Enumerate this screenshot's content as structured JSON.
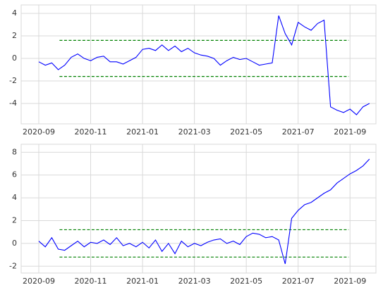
{
  "chart_data": [
    {
      "type": "line",
      "color": "#0000ff",
      "grid": true,
      "x": [
        0,
        0.25,
        0.5,
        0.75,
        1,
        1.25,
        1.5,
        1.75,
        2,
        2.25,
        2.5,
        2.75,
        3,
        3.25,
        3.5,
        3.75,
        4,
        4.25,
        4.5,
        4.75,
        5,
        5.25,
        5.5,
        5.75,
        6,
        6.25,
        6.5,
        6.75,
        7,
        7.25,
        7.5,
        7.75,
        8,
        8.25,
        8.5,
        8.75,
        9,
        9.25,
        9.5,
        9.75,
        10,
        10.25,
        10.5,
        10.75,
        11,
        11.25,
        11.5,
        11.75,
        12,
        12.25,
        12.5,
        12.75
      ],
      "values": [
        -0.3,
        -0.6,
        -0.4,
        -1.0,
        -0.6,
        0.1,
        0.4,
        0.0,
        -0.2,
        0.1,
        0.2,
        -0.3,
        -0.3,
        -0.5,
        -0.2,
        0.1,
        0.8,
        0.9,
        0.7,
        1.2,
        0.7,
        1.1,
        0.6,
        0.9,
        0.5,
        0.3,
        0.2,
        0.0,
        -0.6,
        -0.2,
        0.1,
        -0.1,
        0.0,
        -0.3,
        -0.6,
        -0.5,
        -0.4,
        3.8,
        2.2,
        1.2,
        3.2,
        2.8,
        2.5,
        3.1,
        3.4,
        -4.3,
        -4.6,
        -4.8,
        -4.5,
        -5.0,
        -4.3,
        -4.0
      ],
      "reference_lines": [
        {
          "x": [
            0.8,
            11.95
          ],
          "values": [
            1.6,
            1.6
          ],
          "color": "#008000"
        },
        {
          "x": [
            0.8,
            11.95
          ],
          "values": [
            -1.6,
            -1.6
          ],
          "color": "#008000"
        }
      ],
      "xlim": [
        -0.68,
        13.0
      ],
      "ylim": [
        -5.81,
        4.75
      ],
      "xticks": [
        {
          "value": 0,
          "label": "2020-09"
        },
        {
          "value": 2,
          "label": "2020-11"
        },
        {
          "value": 4,
          "label": "2021-01"
        },
        {
          "value": 6,
          "label": "2021-03"
        },
        {
          "value": 8,
          "label": "2021-05"
        },
        {
          "value": 10,
          "label": "2021-07"
        },
        {
          "value": 12,
          "label": "2021-09"
        }
      ],
      "yticks": [
        -4,
        -2,
        0,
        2,
        4
      ]
    },
    {
      "type": "line",
      "color": "#0000ff",
      "grid": true,
      "x": [
        0,
        0.25,
        0.5,
        0.75,
        1,
        1.25,
        1.5,
        1.75,
        2,
        2.25,
        2.5,
        2.75,
        3,
        3.25,
        3.5,
        3.75,
        4,
        4.25,
        4.5,
        4.75,
        5,
        5.25,
        5.5,
        5.75,
        6,
        6.25,
        6.5,
        6.75,
        7,
        7.25,
        7.5,
        7.75,
        8,
        8.25,
        8.5,
        8.75,
        9,
        9.25,
        9.5,
        9.75,
        10,
        10.25,
        10.5,
        10.75,
        11,
        11.25,
        11.5,
        11.75,
        12,
        12.25,
        12.5,
        12.75
      ],
      "values": [
        0.2,
        -0.3,
        0.5,
        -0.5,
        -0.6,
        -0.2,
        0.2,
        -0.3,
        0.1,
        0.0,
        0.3,
        -0.1,
        0.5,
        -0.2,
        0.0,
        -0.3,
        0.1,
        -0.4,
        0.3,
        -0.7,
        0.0,
        -0.9,
        0.2,
        -0.3,
        0.0,
        -0.2,
        0.1,
        0.3,
        0.4,
        0.0,
        0.2,
        -0.1,
        0.6,
        0.9,
        0.8,
        0.5,
        0.6,
        0.3,
        -1.8,
        2.2,
        2.9,
        3.4,
        3.6,
        4.0,
        4.4,
        4.7,
        5.3,
        5.7,
        6.1,
        6.4,
        6.8,
        7.4
      ],
      "reference_lines": [
        {
          "x": [
            0.8,
            11.95
          ],
          "values": [
            1.2,
            1.2
          ],
          "color": "#008000"
        },
        {
          "x": [
            0.8,
            11.95
          ],
          "values": [
            -1.2,
            -1.2
          ],
          "color": "#008000"
        }
      ],
      "xlim": [
        -0.68,
        13.0
      ],
      "ylim": [
        -2.6,
        8.7
      ],
      "xticks": [
        {
          "value": 0,
          "label": "2020-09"
        },
        {
          "value": 2,
          "label": "2020-11"
        },
        {
          "value": 4,
          "label": "2021-01"
        },
        {
          "value": 6,
          "label": "2021-03"
        },
        {
          "value": 8,
          "label": "2021-05"
        },
        {
          "value": 10,
          "label": "2021-07"
        },
        {
          "value": 12,
          "label": "2021-09"
        }
      ],
      "yticks": [
        -2,
        0,
        2,
        4,
        6,
        8
      ]
    }
  ]
}
